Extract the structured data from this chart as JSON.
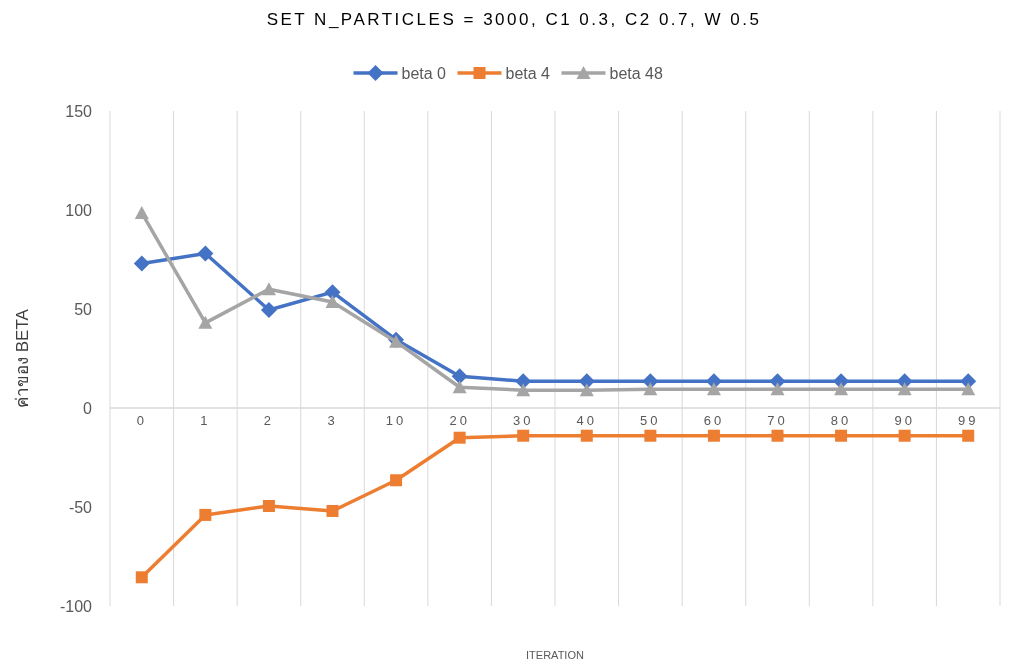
{
  "chart_data": {
    "type": "line",
    "title": "SET N_PARTICLES = 3000, C1 0.3, C2 0.7, W 0.5",
    "xlabel": "ITERATION",
    "ylabel": "ค่าของ BETA",
    "categories": [
      "0",
      "1",
      "2",
      "3",
      "10",
      "20",
      "30",
      "40",
      "50",
      "60",
      "70",
      "80",
      "90",
      "99"
    ],
    "series": [
      {
        "name": "beta 0",
        "color": "#4472c4",
        "marker": "diamond",
        "values": [
          73,
          78,
          49.5,
          58.5,
          34.5,
          16,
          13.5,
          13.5,
          13.5,
          13.5,
          13.5,
          13.5,
          13.5,
          13.5
        ]
      },
      {
        "name": "beta 4",
        "color": "#ed7d31",
        "marker": "square",
        "values": [
          -85.5,
          -54,
          -49.5,
          -52,
          -36.5,
          -15,
          -14,
          -14,
          -14,
          -14,
          -14,
          -14,
          -14,
          -14
        ]
      },
      {
        "name": "beta 48",
        "color": "#a5a5a5",
        "marker": "triangle",
        "values": [
          98.5,
          43,
          60,
          53.5,
          33.5,
          10.5,
          9,
          9,
          9.5,
          9.5,
          9.5,
          9.5,
          9.5,
          9.5
        ]
      }
    ],
    "ylim": [
      -100,
      150
    ],
    "yticks": [
      -100,
      -50,
      0,
      50,
      100,
      150
    ],
    "grid": "x",
    "legend": "top"
  }
}
